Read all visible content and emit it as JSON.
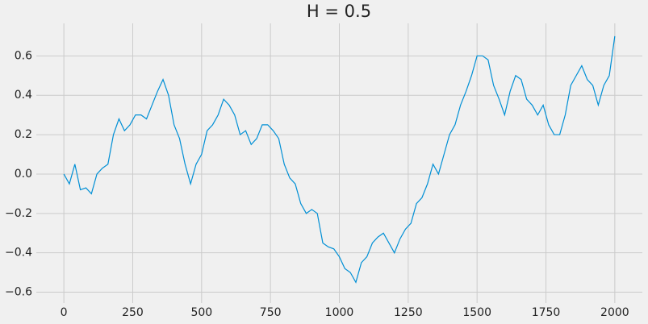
{
  "chart_data": {
    "type": "line",
    "title": "H = 0.5",
    "color": "#008fd5",
    "grid": true,
    "x": [
      0,
      20,
      40,
      60,
      80,
      100,
      120,
      140,
      160,
      180,
      200,
      220,
      240,
      260,
      280,
      300,
      320,
      340,
      360,
      380,
      400,
      420,
      440,
      460,
      480,
      500,
      520,
      540,
      560,
      580,
      600,
      620,
      640,
      660,
      680,
      700,
      720,
      740,
      760,
      780,
      800,
      820,
      840,
      860,
      880,
      900,
      920,
      940,
      960,
      980,
      1000,
      1020,
      1040,
      1060,
      1080,
      1100,
      1120,
      1140,
      1160,
      1180,
      1200,
      1220,
      1240,
      1260,
      1280,
      1300,
      1320,
      1340,
      1360,
      1380,
      1400,
      1420,
      1440,
      1460,
      1480,
      1500,
      1520,
      1540,
      1560,
      1580,
      1600,
      1620,
      1640,
      1660,
      1680,
      1700,
      1720,
      1740,
      1760,
      1780,
      1800,
      1820,
      1840,
      1860,
      1880,
      1900,
      1920,
      1940,
      1960,
      1980,
      2000
    ],
    "values": [
      0.0,
      -0.05,
      0.05,
      -0.08,
      -0.07,
      -0.1,
      0.0,
      0.03,
      0.05,
      0.2,
      0.28,
      0.22,
      0.25,
      0.3,
      0.3,
      0.28,
      0.35,
      0.42,
      0.48,
      0.4,
      0.25,
      0.18,
      0.05,
      -0.05,
      0.05,
      0.1,
      0.22,
      0.25,
      0.3,
      0.38,
      0.35,
      0.3,
      0.2,
      0.22,
      0.15,
      0.18,
      0.25,
      0.25,
      0.22,
      0.18,
      0.05,
      -0.02,
      -0.05,
      -0.15,
      -0.2,
      -0.18,
      -0.2,
      -0.35,
      -0.37,
      -0.38,
      -0.42,
      -0.48,
      -0.5,
      -0.55,
      -0.45,
      -0.42,
      -0.35,
      -0.32,
      -0.3,
      -0.35,
      -0.4,
      -0.33,
      -0.28,
      -0.25,
      -0.15,
      -0.12,
      -0.05,
      0.05,
      0.0,
      0.1,
      0.2,
      0.25,
      0.35,
      0.42,
      0.5,
      0.6,
      0.6,
      0.58,
      0.45,
      0.38,
      0.3,
      0.42,
      0.5,
      0.48,
      0.38,
      0.35,
      0.3,
      0.35,
      0.25,
      0.2,
      0.2,
      0.3,
      0.45,
      0.5,
      0.55,
      0.48,
      0.45,
      0.35,
      0.45,
      0.5,
      0.7
    ],
    "xlim": [
      -100,
      2100
    ],
    "xticks": [
      0,
      250,
      500,
      750,
      1000,
      1250,
      1500,
      1750,
      2000
    ],
    "ylim": [
      -0.655,
      0.765
    ],
    "yticks": [
      {
        "value": -0.6,
        "label": "−0.6"
      },
      {
        "value": -0.4,
        "label": "−0.4"
      },
      {
        "value": -0.2,
        "label": "−0.2"
      },
      {
        "value": 0,
        "label": "0.0"
      },
      {
        "value": 0.2,
        "label": "0.2"
      },
      {
        "value": 0.4,
        "label": "0.4"
      },
      {
        "value": 0.6,
        "label": "0.6"
      }
    ]
  }
}
